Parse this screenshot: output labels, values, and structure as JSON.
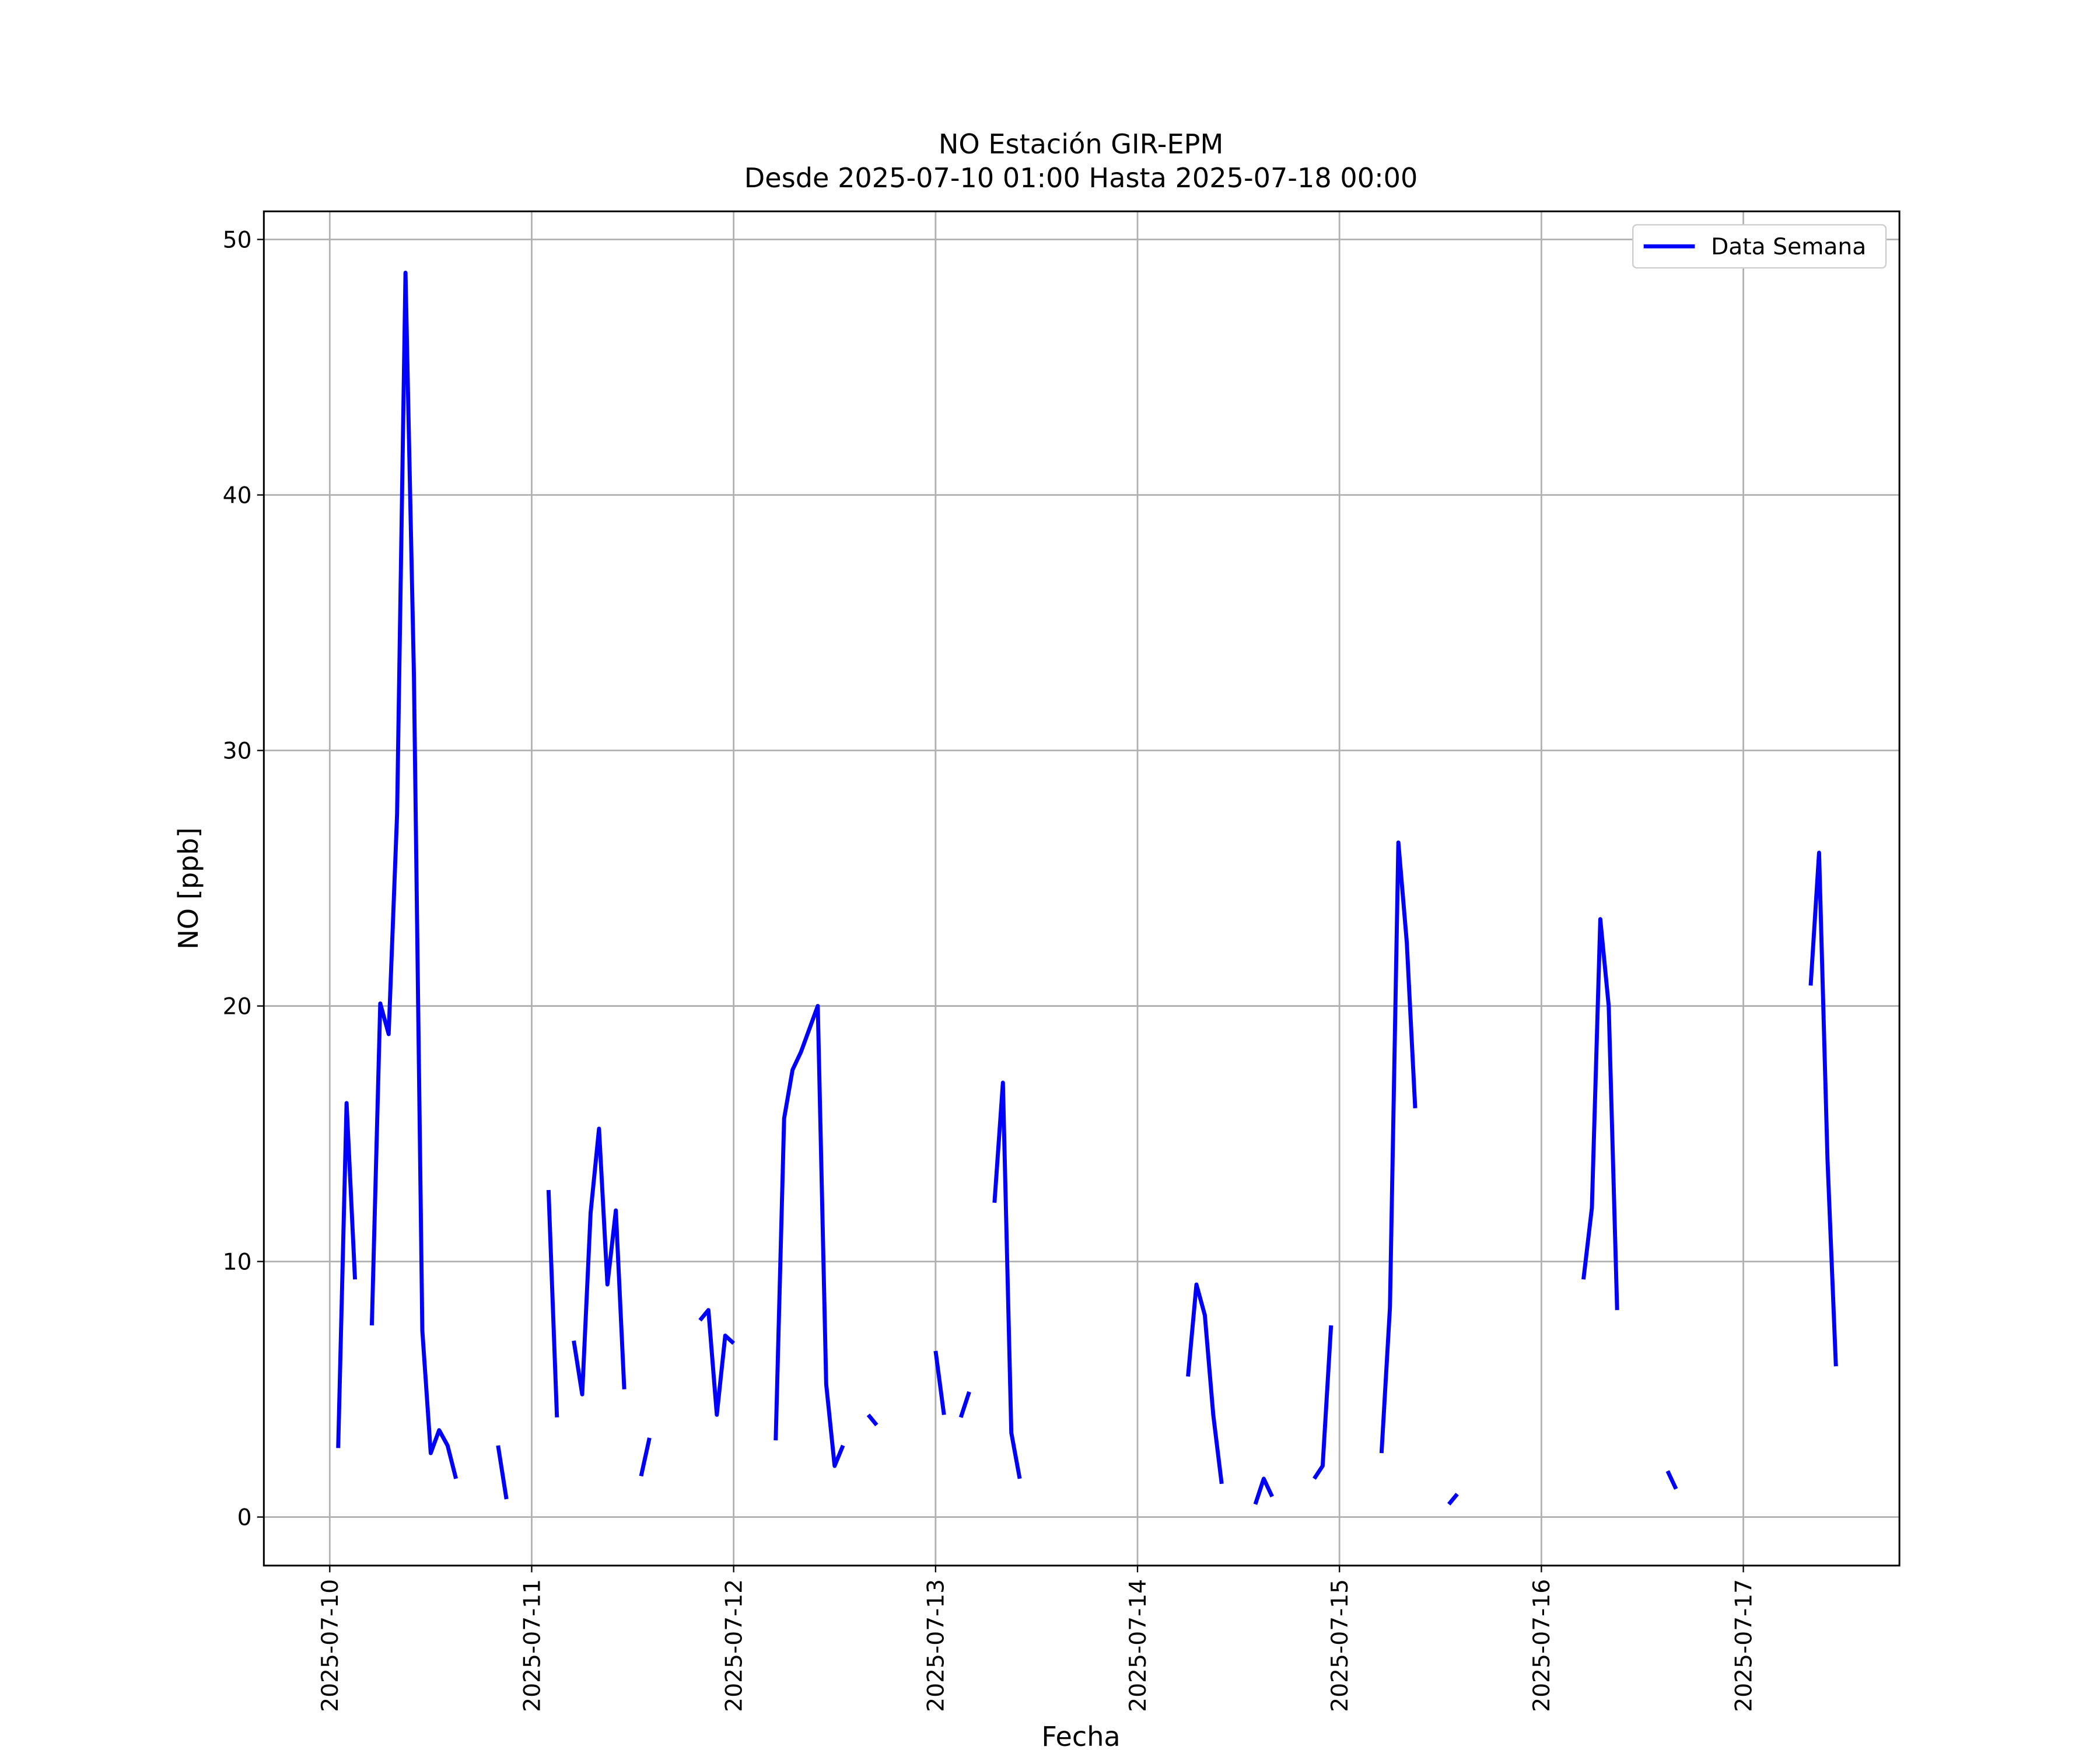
{
  "chart_data": {
    "type": "line",
    "title": "NO Estación GIR-EPM",
    "subtitle": "Desde 2025-07-10 01:00 Hasta 2025-07-18 00:00",
    "xlabel": "Fecha",
    "ylabel": "NO [ppb]",
    "x": [
      "2025-07-10 01:00",
      "2025-07-10 02:00",
      "2025-07-10 03:00",
      "2025-07-10 04:00",
      "2025-07-10 05:00",
      "2025-07-10 06:00",
      "2025-07-10 07:00",
      "2025-07-10 08:00",
      "2025-07-10 09:00",
      "2025-07-10 10:00",
      "2025-07-10 11:00",
      "2025-07-10 12:00",
      "2025-07-10 13:00",
      "2025-07-10 14:00",
      "2025-07-10 15:00",
      "2025-07-10 16:00",
      "2025-07-10 17:00",
      "2025-07-10 18:00",
      "2025-07-10 19:00",
      "2025-07-10 20:00",
      "2025-07-10 21:00",
      "2025-07-10 22:00",
      "2025-07-10 23:00",
      "2025-07-11 00:00",
      "2025-07-11 01:00",
      "2025-07-11 02:00",
      "2025-07-11 03:00",
      "2025-07-11 04:00",
      "2025-07-11 05:00",
      "2025-07-11 06:00",
      "2025-07-11 07:00",
      "2025-07-11 08:00",
      "2025-07-11 09:00",
      "2025-07-11 10:00",
      "2025-07-11 11:00",
      "2025-07-11 12:00",
      "2025-07-11 13:00",
      "2025-07-11 14:00",
      "2025-07-11 15:00",
      "2025-07-11 16:00",
      "2025-07-11 17:00",
      "2025-07-11 18:00",
      "2025-07-11 19:00",
      "2025-07-11 20:00",
      "2025-07-11 21:00",
      "2025-07-11 22:00",
      "2025-07-11 23:00",
      "2025-07-12 00:00",
      "2025-07-12 01:00",
      "2025-07-12 02:00",
      "2025-07-12 03:00",
      "2025-07-12 04:00",
      "2025-07-12 05:00",
      "2025-07-12 06:00",
      "2025-07-12 07:00",
      "2025-07-12 08:00",
      "2025-07-12 09:00",
      "2025-07-12 10:00",
      "2025-07-12 11:00",
      "2025-07-12 12:00",
      "2025-07-12 13:00",
      "2025-07-12 14:00",
      "2025-07-12 15:00",
      "2025-07-12 16:00",
      "2025-07-12 17:00",
      "2025-07-12 18:00",
      "2025-07-12 19:00",
      "2025-07-12 20:00",
      "2025-07-12 21:00",
      "2025-07-12 22:00",
      "2025-07-12 23:00",
      "2025-07-13 00:00",
      "2025-07-13 01:00",
      "2025-07-13 02:00",
      "2025-07-13 03:00",
      "2025-07-13 04:00",
      "2025-07-13 05:00",
      "2025-07-13 06:00",
      "2025-07-13 07:00",
      "2025-07-13 08:00",
      "2025-07-13 09:00",
      "2025-07-13 10:00",
      "2025-07-13 11:00",
      "2025-07-13 12:00",
      "2025-07-13 13:00",
      "2025-07-13 14:00",
      "2025-07-13 15:00",
      "2025-07-13 16:00",
      "2025-07-13 17:00",
      "2025-07-13 18:00",
      "2025-07-13 19:00",
      "2025-07-13 20:00",
      "2025-07-13 21:00",
      "2025-07-13 22:00",
      "2025-07-13 23:00",
      "2025-07-14 00:00",
      "2025-07-14 01:00",
      "2025-07-14 02:00",
      "2025-07-14 03:00",
      "2025-07-14 04:00",
      "2025-07-14 05:00",
      "2025-07-14 06:00",
      "2025-07-14 07:00",
      "2025-07-14 08:00",
      "2025-07-14 09:00",
      "2025-07-14 10:00",
      "2025-07-14 11:00",
      "2025-07-14 12:00",
      "2025-07-14 13:00",
      "2025-07-14 14:00",
      "2025-07-14 15:00",
      "2025-07-14 16:00",
      "2025-07-14 17:00",
      "2025-07-14 18:00",
      "2025-07-14 19:00",
      "2025-07-14 20:00",
      "2025-07-14 21:00",
      "2025-07-14 22:00",
      "2025-07-14 23:00",
      "2025-07-15 00:00",
      "2025-07-15 01:00",
      "2025-07-15 02:00",
      "2025-07-15 03:00",
      "2025-07-15 04:00",
      "2025-07-15 05:00",
      "2025-07-15 06:00",
      "2025-07-15 07:00",
      "2025-07-15 08:00",
      "2025-07-15 09:00",
      "2025-07-15 10:00",
      "2025-07-15 11:00",
      "2025-07-15 12:00",
      "2025-07-15 13:00",
      "2025-07-15 14:00",
      "2025-07-15 15:00",
      "2025-07-15 16:00",
      "2025-07-15 17:00",
      "2025-07-15 18:00",
      "2025-07-15 19:00",
      "2025-07-15 20:00",
      "2025-07-15 21:00",
      "2025-07-15 22:00",
      "2025-07-15 23:00",
      "2025-07-16 00:00",
      "2025-07-16 01:00",
      "2025-07-16 02:00",
      "2025-07-16 03:00",
      "2025-07-16 04:00",
      "2025-07-16 05:00",
      "2025-07-16 06:00",
      "2025-07-16 07:00",
      "2025-07-16 08:00",
      "2025-07-16 09:00",
      "2025-07-16 10:00",
      "2025-07-16 11:00",
      "2025-07-16 12:00",
      "2025-07-16 13:00",
      "2025-07-16 14:00",
      "2025-07-16 15:00",
      "2025-07-16 16:00",
      "2025-07-16 17:00",
      "2025-07-16 18:00",
      "2025-07-16 19:00",
      "2025-07-16 20:00",
      "2025-07-16 21:00",
      "2025-07-16 22:00",
      "2025-07-16 23:00",
      "2025-07-17 00:00",
      "2025-07-17 01:00",
      "2025-07-17 02:00",
      "2025-07-17 03:00",
      "2025-07-17 04:00",
      "2025-07-17 05:00",
      "2025-07-17 06:00",
      "2025-07-17 07:00",
      "2025-07-17 08:00",
      "2025-07-17 09:00",
      "2025-07-17 10:00",
      "2025-07-17 11:00",
      "2025-07-17 12:00",
      "2025-07-17 13:00",
      "2025-07-17 14:00",
      "2025-07-17 15:00",
      "2025-07-17 16:00",
      "2025-07-17 17:00",
      "2025-07-17 18:00",
      "2025-07-17 19:00",
      "2025-07-17 20:00",
      "2025-07-17 21:00",
      "2025-07-17 22:00",
      "2025-07-17 23:00",
      "2025-07-18 00:00"
    ],
    "series": [
      {
        "name": "Data Semana",
        "color": "#0000ff",
        "values": [
          2.7,
          16.2,
          9.3,
          null,
          7.5,
          20.1,
          18.9,
          27.5,
          48.7,
          33,
          7.3,
          2.5,
          3.4,
          2.8,
          1.5,
          null,
          null,
          null,
          null,
          2.8,
          0.7,
          null,
          null,
          null,
          null,
          12.8,
          3.9,
          null,
          6.9,
          4.8,
          11.9,
          15.2,
          9.1,
          12,
          5,
          null,
          1.6,
          3.1,
          null,
          null,
          null,
          null,
          null,
          7.7,
          8.1,
          4,
          7.1,
          6.8,
          null,
          null,
          null,
          null,
          3,
          15.6,
          17.5,
          18.2,
          19.1,
          20,
          5.2,
          2,
          2.8,
          null,
          null,
          4,
          3.6,
          null,
          null,
          null,
          null,
          null,
          null,
          6.5,
          4,
          null,
          3.9,
          4.9,
          null,
          null,
          12.3,
          17,
          3.3,
          1.5,
          null,
          null,
          null,
          null,
          null,
          null,
          null,
          null,
          null,
          null,
          null,
          null,
          null,
          null,
          null,
          null,
          null,
          null,
          null,
          5.5,
          9.1,
          7.9,
          4,
          1.3,
          null,
          null,
          null,
          0.5,
          1.5,
          0.8,
          null,
          null,
          null,
          null,
          1.5,
          2,
          7.5,
          null,
          null,
          null,
          null,
          null,
          2.5,
          8.2,
          26.4,
          22.5,
          16,
          null,
          null,
          null,
          0.5,
          0.9,
          null,
          null,
          null,
          null,
          null,
          null,
          null,
          null,
          null,
          null,
          null,
          null,
          null,
          null,
          9.3,
          12.1,
          23.4,
          20,
          8.1,
          null,
          null,
          null,
          null,
          null,
          1.8,
          1.1,
          null,
          null,
          null,
          null,
          null,
          null,
          null,
          null,
          null,
          null,
          null,
          null,
          null,
          null,
          null,
          20.8,
          26,
          14,
          5.9,
          null,
          null,
          null,
          null,
          null,
          null,
          null,
          null,
          null,
          null,
          null,
          null,
          null
        ]
      }
    ],
    "xlim": [
      "2025-07-09 16:10",
      "2025-07-17 18:33"
    ],
    "xticks": [
      "2025-07-10",
      "2025-07-11",
      "2025-07-12",
      "2025-07-13",
      "2025-07-14",
      "2025-07-15",
      "2025-07-16",
      "2025-07-17"
    ],
    "ylim": [
      -1.9,
      51.1
    ],
    "yticks": [
      0,
      10,
      20,
      30,
      40,
      50
    ],
    "grid": true,
    "legend": "upper right"
  }
}
